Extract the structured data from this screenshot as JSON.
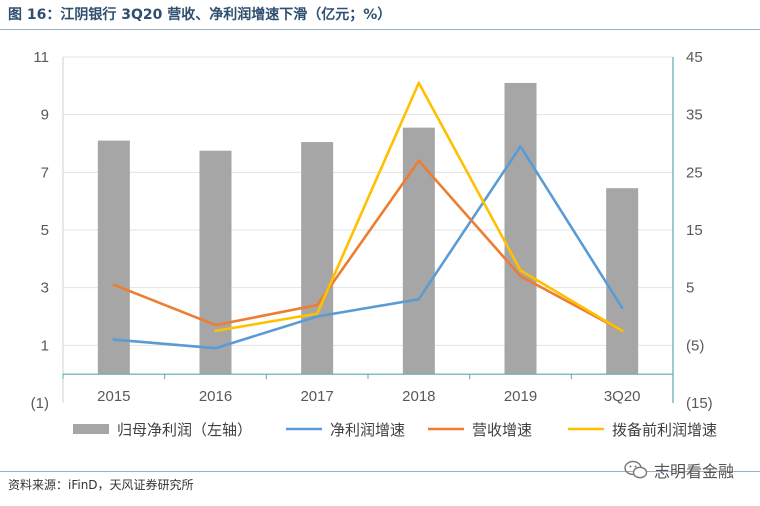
{
  "title": "图 16：江阴银行 3Q20 营收、净利润增速下滑（亿元；%）",
  "source": "资料来源：iFinD，天风证券研究所",
  "watermark": "志明看金融",
  "chart_data": {
    "type": "bar+line",
    "categories": [
      "2015",
      "2016",
      "2017",
      "2018",
      "2019",
      "3Q20"
    ],
    "left_axis": {
      "ticks": [
        "(1)",
        "1",
        "3",
        "5",
        "7",
        "9",
        "11"
      ],
      "range": [
        -1,
        11
      ]
    },
    "right_axis": {
      "ticks": [
        "(15)",
        "(5)",
        "5",
        "15",
        "25",
        "35",
        "45"
      ],
      "range": [
        -15,
        45
      ]
    },
    "grid": true,
    "legend_position": "bottom",
    "bars": {
      "name": "归母净利润（左轴）",
      "axis": "left",
      "color": "#a6a6a6",
      "values": [
        8.1,
        7.75,
        8.05,
        8.55,
        10.1,
        6.45
      ]
    },
    "series": [
      {
        "name": "净利润增速",
        "axis": "right",
        "color": "#5b9bd5",
        "values": [
          -4.0,
          -5.5,
          0.0,
          3.0,
          29.5,
          1.5
        ]
      },
      {
        "name": "营收增速",
        "axis": "right",
        "color": "#ed7d31",
        "values": [
          5.5,
          -1.5,
          2.0,
          27.0,
          7.0,
          -2.5
        ]
      },
      {
        "name": "拨备前利润增速",
        "axis": "right",
        "color": "#ffc000",
        "values": [
          null,
          -2.5,
          0.5,
          40.5,
          8.0,
          -2.5
        ]
      }
    ]
  }
}
